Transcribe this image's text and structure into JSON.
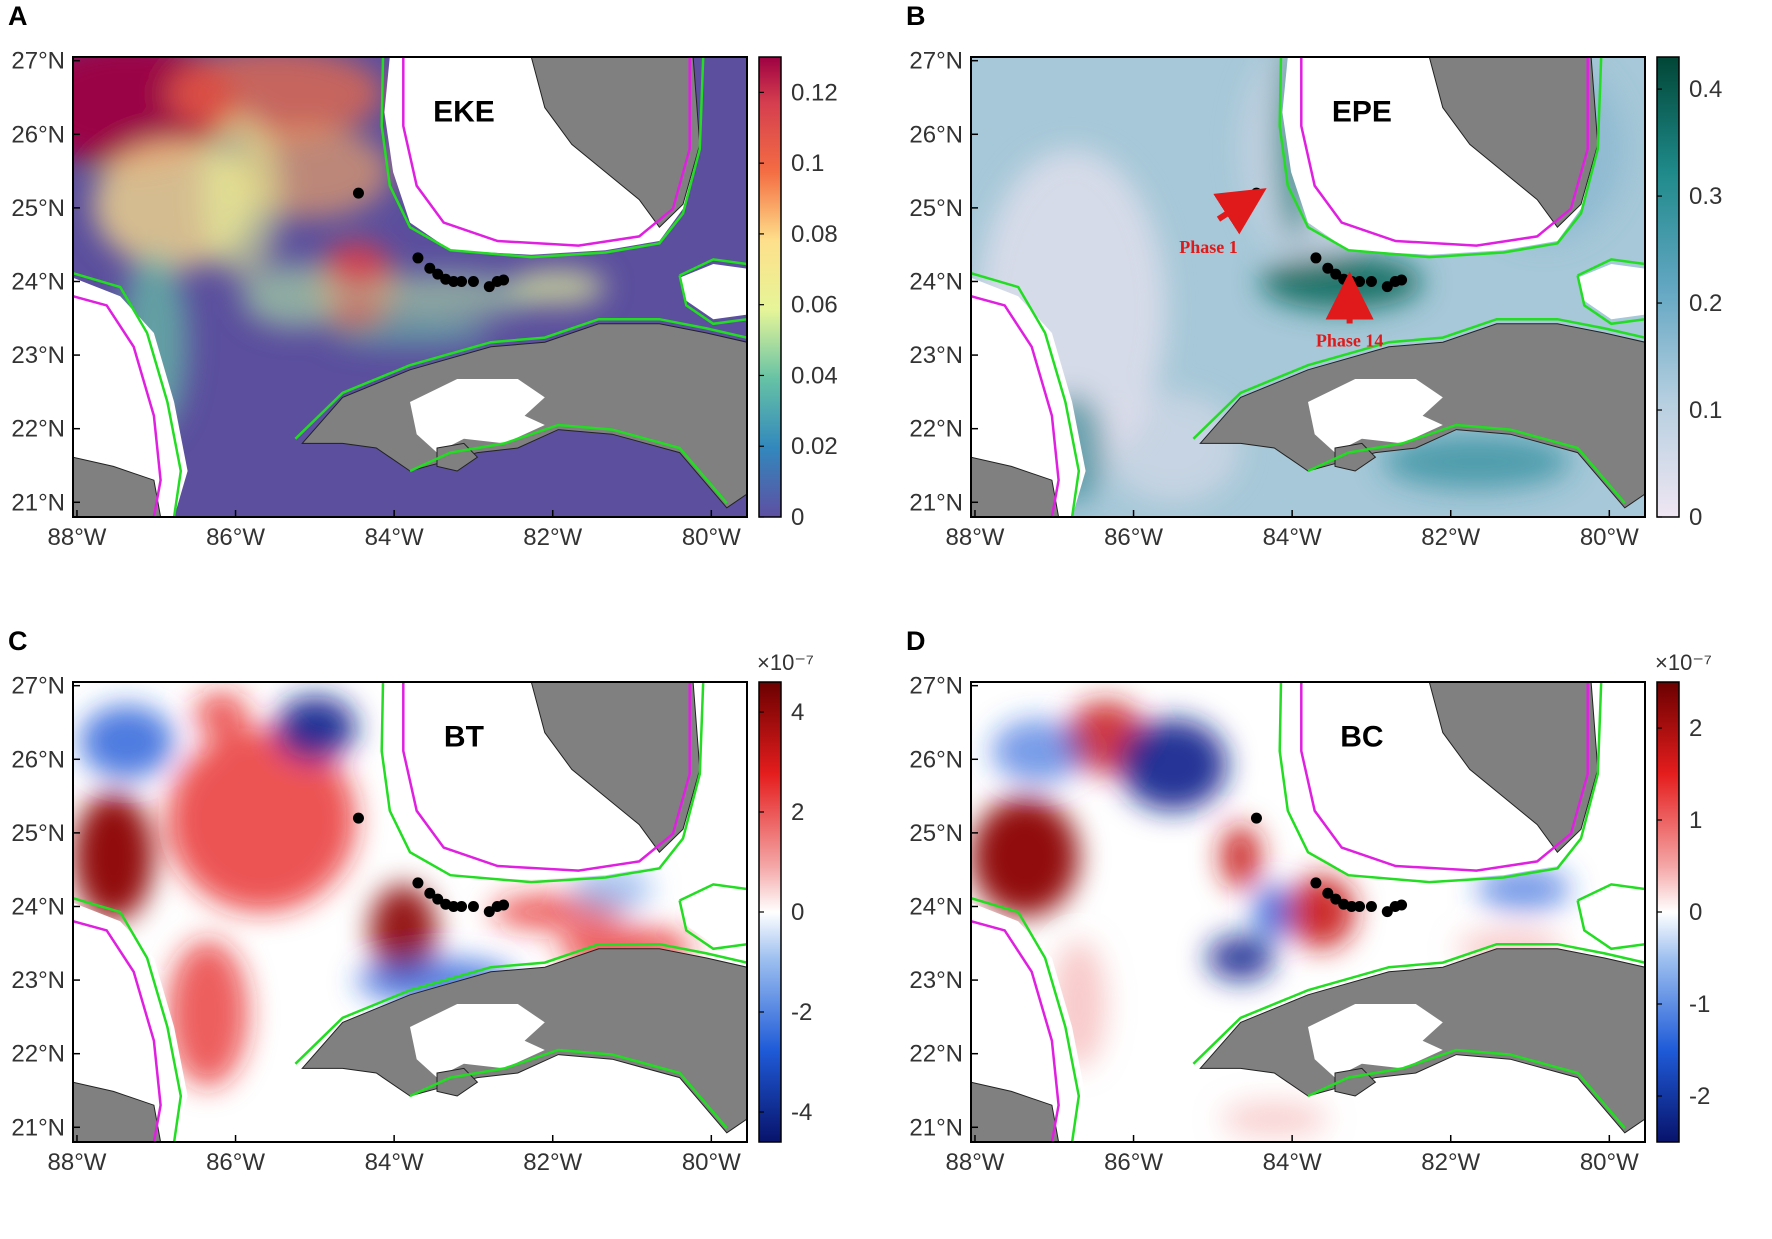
{
  "figure": {
    "coast_colors": {
      "isobath_green": "#22dd22",
      "isobath_magenta": "#e020e0",
      "land": "#808080"
    },
    "lon_ticks": [
      "88°W",
      "86°W",
      "84°W",
      "82°W",
      "80°W"
    ],
    "lat_ticks": [
      "27°N",
      "26°N",
      "25°N",
      "24°N",
      "23°N",
      "22°N",
      "21°N"
    ],
    "stations": [
      {
        "lon": -84.45,
        "lat": 25.2
      },
      {
        "lon": -83.7,
        "lat": 24.32
      },
      {
        "lon": -83.55,
        "lat": 24.18
      },
      {
        "lon": -83.45,
        "lat": 24.1
      },
      {
        "lon": -83.35,
        "lat": 24.03
      },
      {
        "lon": -83.25,
        "lat": 24.0
      },
      {
        "lon": -83.15,
        "lat": 24.0
      },
      {
        "lon": -83.0,
        "lat": 24.0
      },
      {
        "lon": -82.8,
        "lat": 23.93
      },
      {
        "lon": -82.7,
        "lat": 24.0
      },
      {
        "lon": -82.62,
        "lat": 24.02
      }
    ],
    "panels": [
      {
        "letter": "A",
        "title": "EKE",
        "colormap": "spectral",
        "colorbar": {
          "ticks": [
            "0.12",
            "0.1",
            "0.08",
            "0.06",
            "0.04",
            "0.02",
            "0"
          ],
          "exponent": "",
          "range": [
            0,
            0.13
          ]
        },
        "background_color": "#5b4f9e",
        "annotations": []
      },
      {
        "letter": "B",
        "title": "EPE",
        "colormap": "teal",
        "colorbar": {
          "ticks": [
            "0.4",
            "0.3",
            "0.2",
            "0.1",
            "0"
          ],
          "exponent": "",
          "range": [
            0,
            0.43
          ]
        },
        "background_color": "#a6c8d8",
        "annotations": [
          {
            "label": "Phase 1",
            "lon": -84.45,
            "lat": 25.2
          },
          {
            "label": "Phase 14",
            "lon": -83.25,
            "lat": 24.0
          }
        ]
      },
      {
        "letter": "C",
        "title": "BT",
        "colormap": "diverging",
        "colorbar": {
          "ticks": [
            "4",
            "2",
            "0",
            "-2",
            "-4"
          ],
          "exponent": "×10⁻⁷",
          "range": [
            -4.6,
            4.6
          ]
        },
        "background_color": "#ffffff",
        "annotations": []
      },
      {
        "letter": "D",
        "title": "BC",
        "colormap": "diverging",
        "colorbar": {
          "ticks": [
            "2",
            "1",
            "0",
            "-1",
            "-2"
          ],
          "exponent": "×10⁻⁷",
          "range": [
            -2.5,
            2.5
          ]
        },
        "background_color": "#ffffff",
        "annotations": []
      }
    ]
  }
}
